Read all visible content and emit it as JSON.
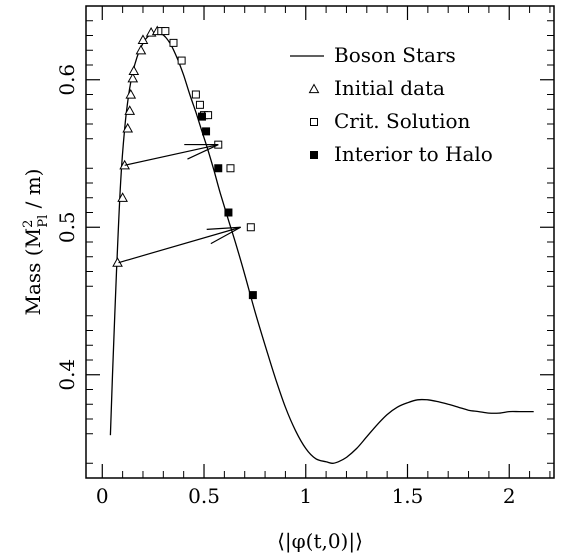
{
  "chart_data": {
    "type": "scatter",
    "title": "",
    "xlabel": "⟨|φ(t,0)|⟩",
    "ylabel": "Mass (M²Pl / m)",
    "ylabel_parts": {
      "pre": "Mass (M",
      "sup": "2",
      "sub": "Pl",
      "post": " / m)"
    },
    "xlim": [
      -0.08,
      2.22
    ],
    "ylim": [
      0.33,
      0.65
    ],
    "x_ticks": [
      0,
      0.5,
      1,
      1.5,
      2
    ],
    "x_tick_labels": [
      "0",
      "0.5",
      "1",
      "1.5",
      "2"
    ],
    "y_ticks": [
      0.4,
      0.5,
      0.6
    ],
    "y_tick_labels": [
      "0.4",
      "0.5",
      "0.6"
    ],
    "grid": false,
    "legend_position": "top-right",
    "series": [
      {
        "name": "Boson Stars",
        "kind": "line",
        "x": [
          0.04,
          0.05,
          0.07,
          0.09,
          0.11,
          0.13,
          0.15,
          0.17,
          0.19,
          0.21,
          0.23,
          0.25,
          0.28,
          0.31,
          0.34,
          0.37,
          0.4,
          0.43,
          0.46,
          0.49,
          0.52,
          0.55,
          0.58,
          0.62,
          0.66,
          0.7,
          0.75,
          0.8,
          0.85,
          0.9,
          0.95,
          1.0,
          1.05,
          1.1,
          1.13,
          1.16,
          1.2,
          1.25,
          1.3,
          1.35,
          1.4,
          1.45,
          1.5,
          1.55,
          1.6,
          1.64,
          1.7,
          1.75,
          1.8,
          1.85,
          1.9,
          1.95,
          2.0,
          2.05,
          2.1,
          2.12
        ],
        "y": [
          0.359,
          0.4,
          0.47,
          0.53,
          0.567,
          0.59,
          0.605,
          0.615,
          0.622,
          0.627,
          0.63,
          0.632,
          0.632,
          0.629,
          0.623,
          0.614,
          0.603,
          0.59,
          0.578,
          0.565,
          0.552,
          0.538,
          0.523,
          0.505,
          0.487,
          0.468,
          0.443,
          0.42,
          0.398,
          0.378,
          0.362,
          0.35,
          0.343,
          0.341,
          0.34,
          0.341,
          0.344,
          0.35,
          0.358,
          0.366,
          0.373,
          0.378,
          0.381,
          0.383,
          0.383,
          0.382,
          0.38,
          0.378,
          0.376,
          0.375,
          0.374,
          0.374,
          0.375,
          0.375,
          0.375,
          0.375
        ]
      },
      {
        "name": "Initial data",
        "kind": "marker",
        "marker": "triangle-open",
        "x": [
          0.075,
          0.1,
          0.11,
          0.125,
          0.135,
          0.14,
          0.15,
          0.155,
          0.19,
          0.2,
          0.24,
          0.27
        ],
        "y": [
          0.476,
          0.52,
          0.542,
          0.567,
          0.579,
          0.59,
          0.601,
          0.606,
          0.62,
          0.627,
          0.632,
          0.633
        ]
      },
      {
        "name": "Crit. Solution",
        "kind": "marker",
        "marker": "square-open",
        "x": [
          0.29,
          0.31,
          0.35,
          0.39,
          0.46,
          0.48,
          0.5,
          0.52,
          0.57,
          0.63,
          0.73
        ],
        "y": [
          0.633,
          0.633,
          0.625,
          0.613,
          0.59,
          0.583,
          0.576,
          0.576,
          0.556,
          0.54,
          0.5
        ]
      },
      {
        "name": "Interior to Halo",
        "kind": "marker",
        "marker": "square-filled",
        "x": [
          0.49,
          0.51,
          0.57,
          0.62,
          0.74
        ],
        "y": [
          0.575,
          0.565,
          0.54,
          0.51,
          0.454
        ]
      }
    ],
    "annotations": [
      {
        "type": "arrow",
        "from": [
          0.11,
          0.542
        ],
        "to": [
          0.57,
          0.556
        ]
      },
      {
        "type": "arrow",
        "from": [
          0.08,
          0.476
        ],
        "to": [
          0.68,
          0.5
        ]
      }
    ]
  }
}
